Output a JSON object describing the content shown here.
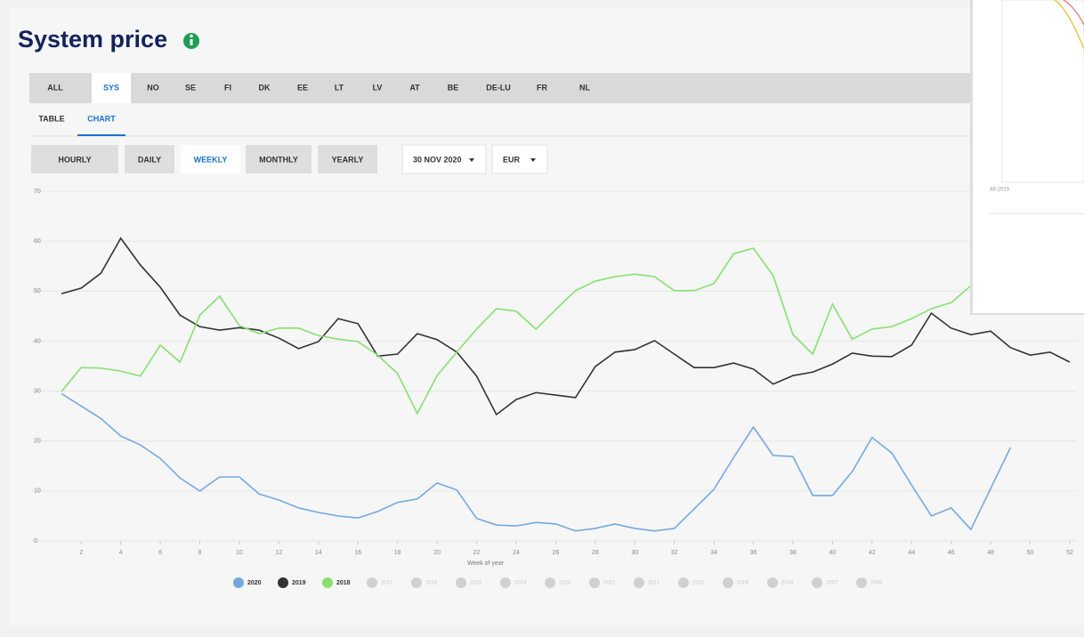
{
  "header": {
    "title": "System price"
  },
  "tabs": {
    "items": [
      "ALL",
      "SYS",
      "NO",
      "SE",
      "FI",
      "DK",
      "EE",
      "LT",
      "LV",
      "AT",
      "BE",
      "DE-LU",
      "FR",
      "NL"
    ],
    "active_index": 1
  },
  "view_tabs": {
    "items": [
      "TABLE",
      "CHART"
    ],
    "active_index": 1
  },
  "resolution": {
    "items": [
      "HOURLY",
      "DAILY",
      "WEEKLY",
      "MONTHLY",
      "YEARLY"
    ],
    "active_index": 2
  },
  "date_select": "30 NOV 2020",
  "currency_select": "EUR",
  "popup": {
    "label": "48-2019"
  },
  "chart_data": {
    "type": "line",
    "x": [
      1,
      2,
      3,
      4,
      5,
      6,
      7,
      8,
      9,
      10,
      11,
      12,
      13,
      14,
      15,
      16,
      17,
      18,
      19,
      20,
      21,
      22,
      23,
      24,
      25,
      26,
      27,
      28,
      29,
      30,
      31,
      32,
      33,
      34,
      35,
      36,
      37,
      38,
      39,
      40,
      41,
      42,
      43,
      44,
      45,
      46,
      47,
      48,
      49,
      50,
      51,
      52
    ],
    "x_label": "Week of year",
    "xlim": [
      1,
      52
    ],
    "xticks": [
      2,
      4,
      6,
      8,
      10,
      12,
      14,
      16,
      18,
      20,
      22,
      24,
      26,
      28,
      30,
      32,
      34,
      36,
      38,
      40,
      42,
      44,
      46,
      48,
      50,
      52
    ],
    "ylim": [
      0,
      70
    ],
    "yticks": [
      0,
      10,
      20,
      30,
      40,
      50,
      60,
      70
    ],
    "grid": true,
    "series": [
      {
        "name": "2020",
        "color": "#74a9e0",
        "values": [
          29.5,
          27,
          24.5,
          21,
          19.2,
          16.5,
          12.6,
          10,
          12.8,
          12.8,
          9.4,
          8.2,
          6.6,
          5.7,
          5,
          4.6,
          5.9,
          7.7,
          8.4,
          11.6,
          10.2,
          4.5,
          3.2,
          3,
          3.7,
          3.4,
          2,
          2.5,
          3.4,
          2.5,
          2,
          2.5,
          6.4,
          10.3,
          16.7,
          22.8,
          17.1,
          16.9,
          9.1,
          9.1,
          13.9,
          20.7,
          17.6,
          11.2,
          5,
          6.6,
          2.3,
          10.5,
          18.7,
          null,
          null,
          null
        ]
      },
      {
        "name": "2019",
        "color": "#333333",
        "values": [
          49.5,
          50.6,
          53.6,
          60.6,
          55.2,
          50.8,
          45.2,
          42.9,
          42.2,
          42.7,
          42.2,
          40.6,
          38.5,
          39.9,
          44.5,
          43.5,
          37,
          37.4,
          41.5,
          40.3,
          37.8,
          33,
          25.3,
          28.3,
          29.7,
          29.2,
          28.7,
          34.9,
          37.8,
          38.3,
          40.1,
          37.4,
          34.7,
          34.7,
          35.6,
          34.4,
          31.4,
          33.1,
          33.8,
          35.4,
          37.6,
          37,
          36.9,
          39.2,
          45.6,
          42.6,
          41.3,
          42,
          38.7,
          37.2,
          37.8,
          35.8
        ]
      },
      {
        "name": "2018",
        "color": "#86e070",
        "values": [
          29.9,
          34.7,
          34.6,
          34,
          33,
          39.2,
          35.8,
          45.2,
          49,
          43.1,
          41.5,
          42.6,
          42.6,
          41.1,
          40.4,
          39.9,
          37.2,
          33.5,
          25.5,
          33.1,
          37.8,
          42.4,
          46.5,
          46,
          42.4,
          46.3,
          50.1,
          52,
          52.9,
          53.4,
          52.9,
          50.1,
          50.1,
          51.5,
          57.5,
          58.6,
          53.1,
          41.3,
          37.4,
          47.4,
          40.4,
          42.4,
          42.9,
          44.5,
          46.5,
          47.7,
          51.1,
          null,
          null,
          null,
          null,
          null
        ]
      }
    ],
    "legend_inactive": {
      "names": [
        "2017",
        "2016",
        "2015",
        "2014",
        "2013",
        "2012",
        "2011",
        "2010",
        "2009",
        "2008",
        "2007",
        "2006"
      ],
      "color": "#d0d0d0"
    }
  }
}
